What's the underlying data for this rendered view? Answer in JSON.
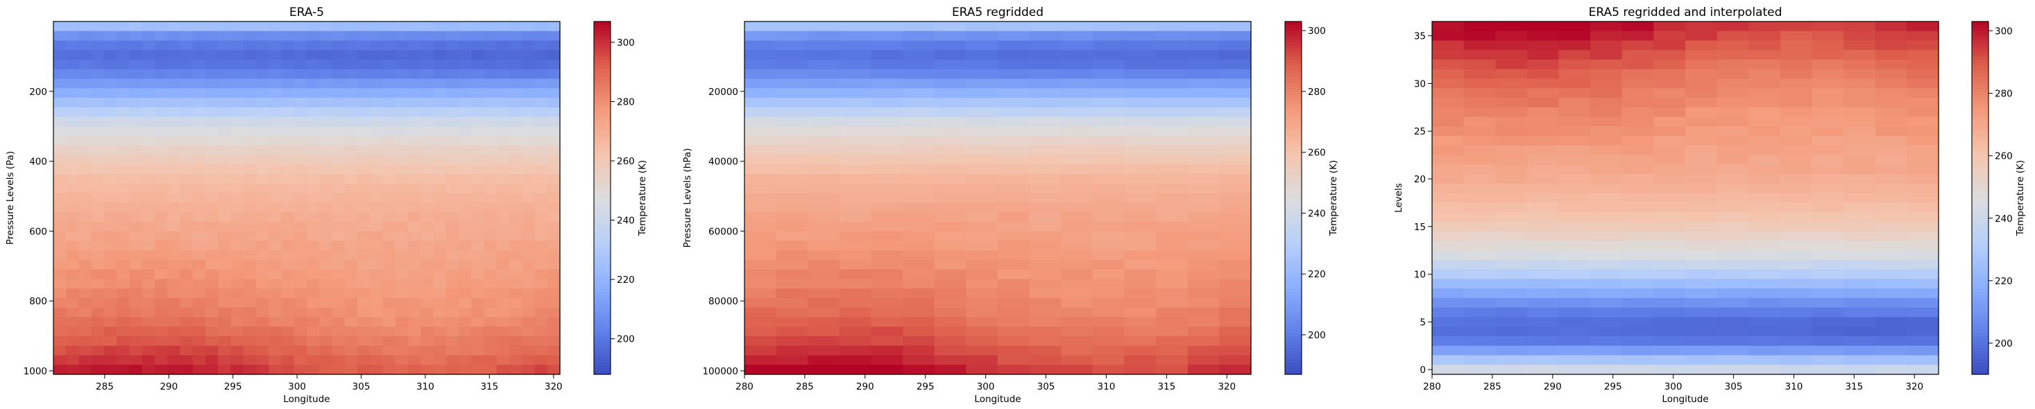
{
  "figure": {
    "colormap": "coolwarm",
    "colors": {
      "cold": "#3b4cc0",
      "neutral": "#dddddd",
      "warm": "#b40426"
    }
  },
  "chart_data": [
    {
      "type": "heatmap",
      "title": "ERA-5",
      "xlabel": "Longitude",
      "ylabel": "Pressure Levels (Pa)",
      "colorbar_label": "Temperature (K)",
      "xlim": [
        281,
        320.5
      ],
      "ylim": [
        1010,
        0
      ],
      "xticks": [
        285,
        290,
        295,
        300,
        305,
        310,
        315,
        320
      ],
      "xtick_labels": [
        "285",
        "290",
        "295",
        "300",
        "305",
        "310",
        "315",
        "320"
      ],
      "yticks": [
        200,
        400,
        600,
        800,
        1000
      ],
      "ytick_labels": [
        "200",
        "400",
        "600",
        "800",
        "1000"
      ],
      "y_reversed": true,
      "rows": 37,
      "cols": 40,
      "vmin": 188,
      "vmax": 307,
      "cbar_ticks": [
        200,
        220,
        240,
        260,
        280,
        300
      ],
      "cbar_tick_labels": [
        "200",
        "220",
        "240",
        "260",
        "280",
        "300"
      ],
      "temperature_profile": {
        "level_fraction": [
          0,
          0.03,
          0.06,
          0.09,
          0.13,
          0.18,
          0.23,
          0.28,
          0.33,
          0.38,
          0.45,
          0.55,
          0.65,
          0.75,
          0.85,
          0.93,
          1.0
        ],
        "temperature": [
          224,
          205,
          199,
          196,
          201,
          214,
          228,
          242,
          250,
          257,
          265,
          270,
          274,
          278,
          283,
          290,
          297
        ]
      }
    },
    {
      "type": "heatmap",
      "title": "ERA5 regridded",
      "xlabel": "Longitude",
      "ylabel": "Pressure Levels (hPa)",
      "colorbar_label": "Temperature (K)",
      "xlim": [
        280,
        322
      ],
      "ylim": [
        101000,
        0
      ],
      "xticks": [
        280,
        285,
        290,
        295,
        300,
        305,
        310,
        315,
        320
      ],
      "xtick_labels": [
        "280",
        "285",
        "290",
        "295",
        "300",
        "305",
        "310",
        "315",
        "320"
      ],
      "yticks": [
        20000,
        40000,
        60000,
        80000,
        100000
      ],
      "ytick_labels": [
        "20000",
        "40000",
        "60000",
        "80000",
        "100000"
      ],
      "y_reversed": true,
      "rows": 37,
      "cols": 16,
      "vmin": 187,
      "vmax": 303,
      "cbar_ticks": [
        200,
        220,
        240,
        260,
        280,
        300
      ],
      "cbar_tick_labels": [
        "200",
        "220",
        "240",
        "260",
        "280",
        "300"
      ],
      "temperature_profile": {
        "level_fraction": [
          0,
          0.03,
          0.06,
          0.09,
          0.13,
          0.18,
          0.23,
          0.28,
          0.33,
          0.38,
          0.45,
          0.55,
          0.65,
          0.75,
          0.85,
          0.93,
          1.0
        ],
        "temperature": [
          224,
          205,
          199,
          196,
          201,
          214,
          228,
          242,
          250,
          257,
          265,
          270,
          274,
          278,
          283,
          290,
          297
        ]
      }
    },
    {
      "type": "heatmap",
      "title": "ERA5 regridded and interpolated",
      "xlabel": "Longitude",
      "ylabel": "Levels",
      "colorbar_label": "Temperature (K)",
      "xlim": [
        280,
        322
      ],
      "ylim": [
        -0.5,
        36.5
      ],
      "xticks": [
        280,
        285,
        290,
        295,
        300,
        305,
        310,
        315,
        320
      ],
      "xtick_labels": [
        "280",
        "285",
        "290",
        "295",
        "300",
        "305",
        "310",
        "315",
        "320"
      ],
      "yticks": [
        0,
        5,
        10,
        15,
        20,
        25,
        30,
        35
      ],
      "ytick_labels": [
        "0",
        "5",
        "10",
        "15",
        "20",
        "25",
        "30",
        "35"
      ],
      "y_reversed": false,
      "rows": 37,
      "cols": 16,
      "vmin": 190,
      "vmax": 303,
      "cbar_ticks": [
        200,
        220,
        240,
        260,
        280,
        300
      ],
      "cbar_tick_labels": [
        "200",
        "220",
        "240",
        "260",
        "280",
        "300"
      ],
      "temperature_profile": {
        "level_fraction": [
          0,
          0.03,
          0.06,
          0.09,
          0.13,
          0.18,
          0.23,
          0.28,
          0.33,
          0.38,
          0.45,
          0.55,
          0.65,
          0.75,
          0.85,
          0.93,
          1.0
        ],
        "temperature": [
          240,
          226,
          210,
          199,
          197,
          205,
          218,
          232,
          244,
          252,
          261,
          268,
          273,
          278,
          284,
          292,
          299
        ]
      }
    }
  ]
}
